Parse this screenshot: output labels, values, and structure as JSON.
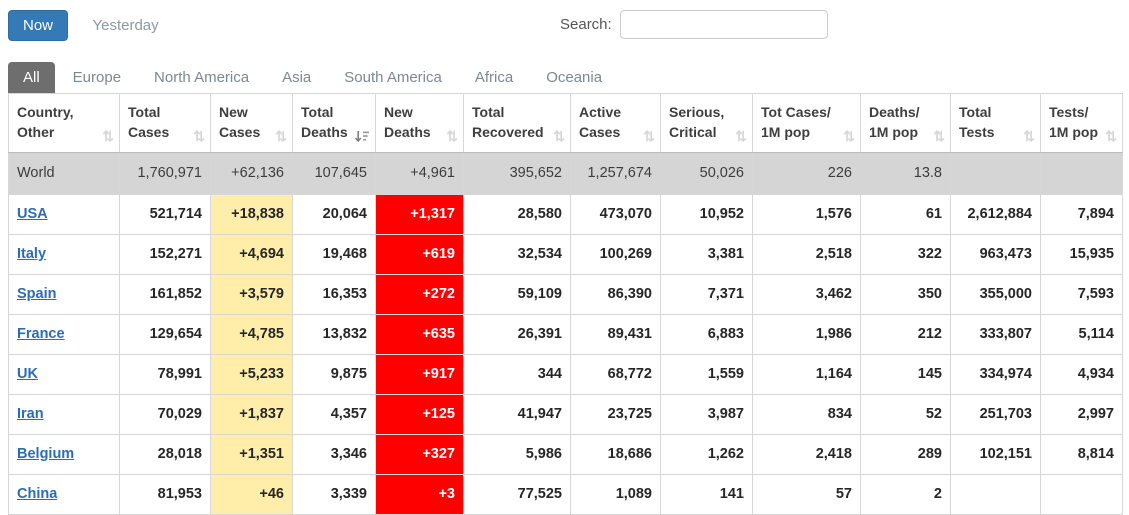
{
  "toolbar": {
    "now_label": "Now",
    "yesterday_label": "Yesterday",
    "search_label": "Search:",
    "search_value": ""
  },
  "tabs": [
    {
      "label": "All",
      "active": true
    },
    {
      "label": "Europe",
      "active": false
    },
    {
      "label": "North America",
      "active": false
    },
    {
      "label": "Asia",
      "active": false
    },
    {
      "label": "South America",
      "active": false
    },
    {
      "label": "Africa",
      "active": false
    },
    {
      "label": "Oceania",
      "active": false
    }
  ],
  "colors": {
    "accent_blue": "#337ab7",
    "active_tab_gray": "#6e6e6e",
    "highlight_yellow": "#FFEEAA",
    "highlight_red": "#FF0000",
    "world_row_gray": "#d5d5d5",
    "link_blue": "#2a6cb5"
  },
  "table": {
    "columns": [
      {
        "id": "country",
        "label_lines": [
          "Country,",
          "Other"
        ],
        "sorted": false
      },
      {
        "id": "total_cases",
        "label_lines": [
          "Total",
          "Cases"
        ],
        "sorted": false
      },
      {
        "id": "new_cases",
        "label_lines": [
          "New",
          "Cases"
        ],
        "sorted": false
      },
      {
        "id": "total_deaths",
        "label_lines": [
          "Total",
          "Deaths"
        ],
        "sorted": true
      },
      {
        "id": "new_deaths",
        "label_lines": [
          "New",
          "Deaths"
        ],
        "sorted": false
      },
      {
        "id": "total_recovered",
        "label_lines": [
          "Total",
          "Recovered"
        ],
        "sorted": false
      },
      {
        "id": "active_cases",
        "label_lines": [
          "Active",
          "Cases"
        ],
        "sorted": false
      },
      {
        "id": "serious_critical",
        "label_lines": [
          "Serious,",
          "Critical"
        ],
        "sorted": false
      },
      {
        "id": "cases_per_1m",
        "label_lines": [
          "Tot Cases/",
          "1M pop"
        ],
        "sorted": false
      },
      {
        "id": "deaths_per_1m",
        "label_lines": [
          "Deaths/",
          "1M pop"
        ],
        "sorted": false
      },
      {
        "id": "total_tests",
        "label_lines": [
          "Total",
          "Tests"
        ],
        "sorted": false
      },
      {
        "id": "tests_per_1m",
        "label_lines": [
          "Tests/",
          "1M pop"
        ],
        "sorted": false
      }
    ],
    "world_row": {
      "country": "World",
      "total_cases": "1,760,971",
      "new_cases": "+62,136",
      "total_deaths": "107,645",
      "new_deaths": "+4,961",
      "total_recovered": "395,652",
      "active_cases": "1,257,674",
      "serious_critical": "50,026",
      "cases_per_1m": "226",
      "deaths_per_1m": "13.8",
      "total_tests": "",
      "tests_per_1m": ""
    },
    "rows": [
      {
        "country": "USA",
        "total_cases": "521,714",
        "new_cases": "+18,838",
        "total_deaths": "20,064",
        "new_deaths": "+1,317",
        "total_recovered": "28,580",
        "active_cases": "473,070",
        "serious_critical": "10,952",
        "cases_per_1m": "1,576",
        "deaths_per_1m": "61",
        "total_tests": "2,612,884",
        "tests_per_1m": "7,894"
      },
      {
        "country": "Italy",
        "total_cases": "152,271",
        "new_cases": "+4,694",
        "total_deaths": "19,468",
        "new_deaths": "+619",
        "total_recovered": "32,534",
        "active_cases": "100,269",
        "serious_critical": "3,381",
        "cases_per_1m": "2,518",
        "deaths_per_1m": "322",
        "total_tests": "963,473",
        "tests_per_1m": "15,935"
      },
      {
        "country": "Spain",
        "total_cases": "161,852",
        "new_cases": "+3,579",
        "total_deaths": "16,353",
        "new_deaths": "+272",
        "total_recovered": "59,109",
        "active_cases": "86,390",
        "serious_critical": "7,371",
        "cases_per_1m": "3,462",
        "deaths_per_1m": "350",
        "total_tests": "355,000",
        "tests_per_1m": "7,593"
      },
      {
        "country": "France",
        "total_cases": "129,654",
        "new_cases": "+4,785",
        "total_deaths": "13,832",
        "new_deaths": "+635",
        "total_recovered": "26,391",
        "active_cases": "89,431",
        "serious_critical": "6,883",
        "cases_per_1m": "1,986",
        "deaths_per_1m": "212",
        "total_tests": "333,807",
        "tests_per_1m": "5,114"
      },
      {
        "country": "UK",
        "total_cases": "78,991",
        "new_cases": "+5,233",
        "total_deaths": "9,875",
        "new_deaths": "+917",
        "total_recovered": "344",
        "active_cases": "68,772",
        "serious_critical": "1,559",
        "cases_per_1m": "1,164",
        "deaths_per_1m": "145",
        "total_tests": "334,974",
        "tests_per_1m": "4,934"
      },
      {
        "country": "Iran",
        "total_cases": "70,029",
        "new_cases": "+1,837",
        "total_deaths": "4,357",
        "new_deaths": "+125",
        "total_recovered": "41,947",
        "active_cases": "23,725",
        "serious_critical": "3,987",
        "cases_per_1m": "834",
        "deaths_per_1m": "52",
        "total_tests": "251,703",
        "tests_per_1m": "2,997"
      },
      {
        "country": "Belgium",
        "total_cases": "28,018",
        "new_cases": "+1,351",
        "total_deaths": "3,346",
        "new_deaths": "+327",
        "total_recovered": "5,986",
        "active_cases": "18,686",
        "serious_critical": "1,262",
        "cases_per_1m": "2,418",
        "deaths_per_1m": "289",
        "total_tests": "102,151",
        "tests_per_1m": "8,814"
      },
      {
        "country": "China",
        "total_cases": "81,953",
        "new_cases": "+46",
        "total_deaths": "3,339",
        "new_deaths": "+3",
        "total_recovered": "77,525",
        "active_cases": "1,089",
        "serious_critical": "141",
        "cases_per_1m": "57",
        "deaths_per_1m": "2",
        "total_tests": "",
        "tests_per_1m": ""
      }
    ]
  }
}
